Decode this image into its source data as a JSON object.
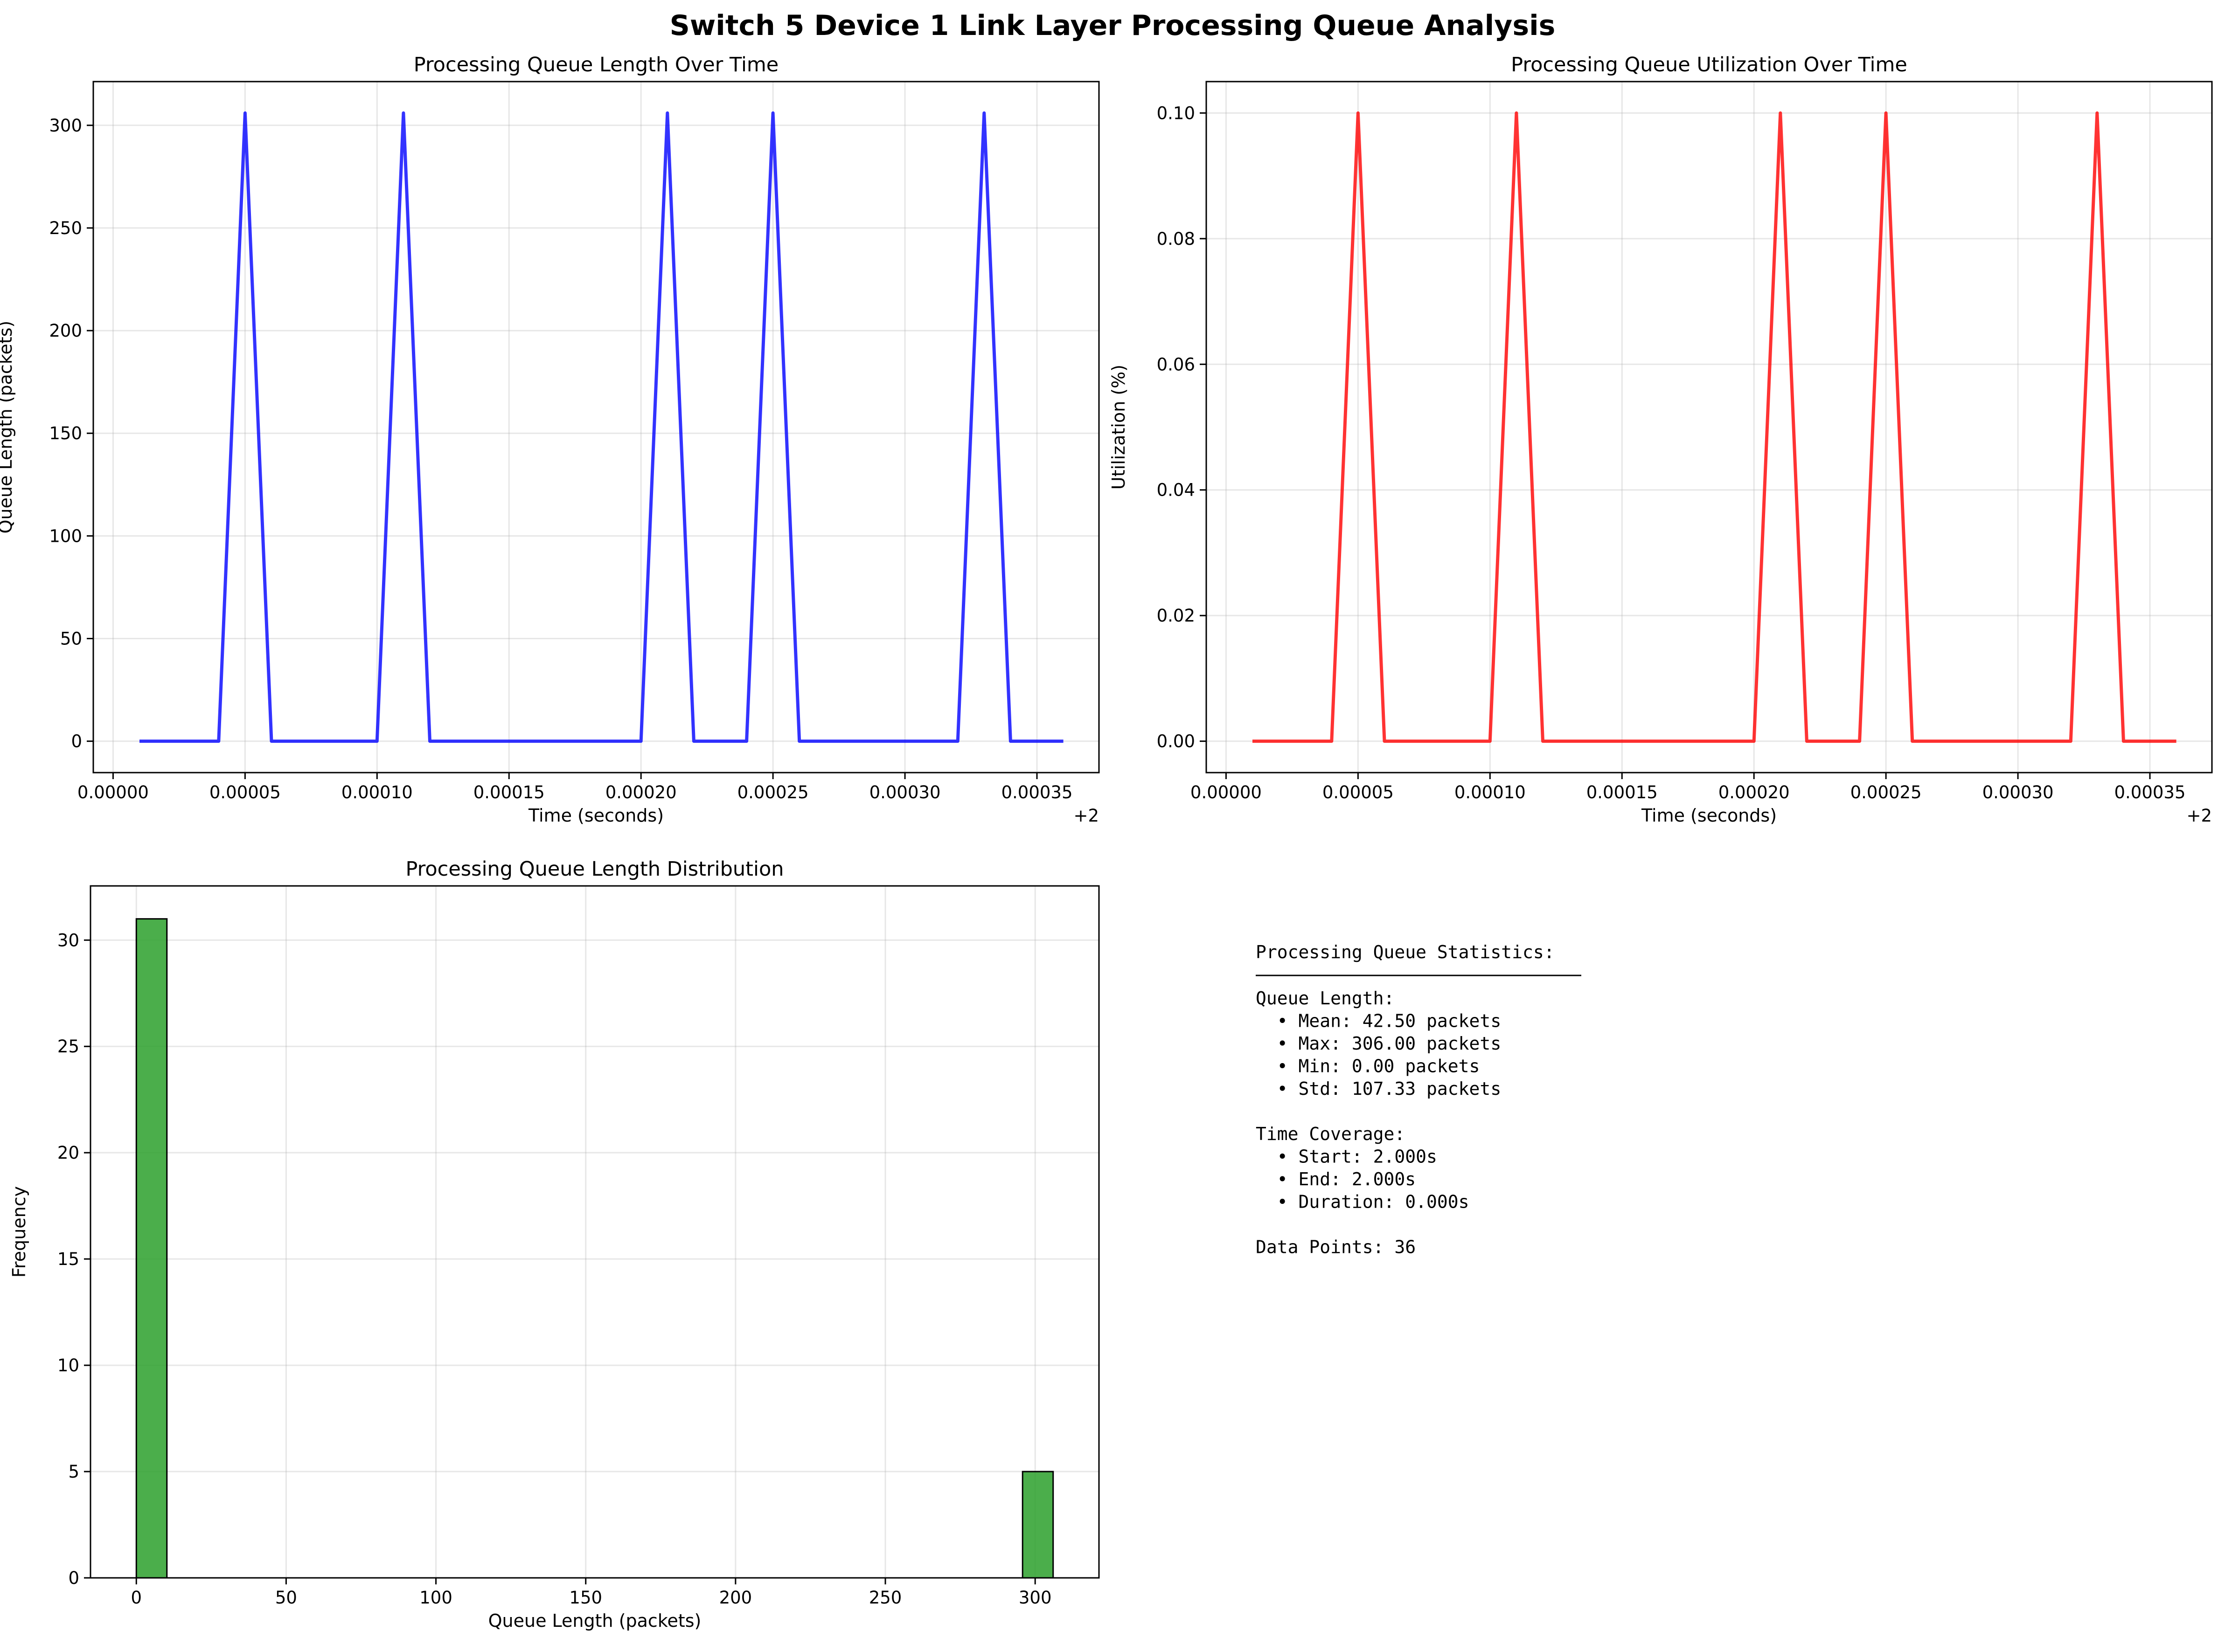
{
  "title": "Switch 5 Device 1 Link Layer Processing Queue Analysis",
  "chart_data": [
    {
      "type": "line",
      "title": "Processing Queue Length Over Time",
      "xlabel": "Time (seconds)",
      "ylabel": "Queue Length (packets)",
      "x_offset_label": "+2",
      "x_ticks": [
        "0.00000",
        "0.00005",
        "0.00010",
        "0.00015",
        "0.00020",
        "0.00025",
        "0.00030",
        "0.00035"
      ],
      "y_ticks": [
        "0",
        "50",
        "100",
        "150",
        "200",
        "250",
        "300"
      ],
      "xlim": [
        -7.5e-06,
        0.0003735
      ],
      "ylim": [
        -15.3,
        321.3
      ],
      "grid": true,
      "color": "#0000ff",
      "series": [
        {
          "x": [
            1e-05,
            2e-05,
            3e-05,
            4e-05,
            5e-05,
            6e-05,
            7e-05,
            8e-05,
            9e-05,
            0.0001,
            0.00011,
            0.00012,
            0.00013,
            0.00014,
            0.00015,
            0.00016,
            0.00017,
            0.00018,
            0.00019,
            0.0002,
            0.00021,
            0.00022,
            0.00023,
            0.00024,
            0.00025,
            0.00026,
            0.00027,
            0.00028,
            0.00029,
            0.0003,
            0.00031,
            0.00032,
            0.00033,
            0.00034,
            0.00035,
            0.00036
          ],
          "values": [
            0,
            0,
            0,
            0,
            306,
            0,
            0,
            0,
            0,
            0,
            306,
            0,
            0,
            0,
            0,
            0,
            0,
            0,
            0,
            0,
            306,
            0,
            0,
            0,
            306,
            0,
            0,
            0,
            0,
            0,
            0,
            0,
            306,
            0,
            0,
            0
          ]
        }
      ]
    },
    {
      "type": "line",
      "title": "Processing Queue Utilization Over Time",
      "xlabel": "Time (seconds)",
      "ylabel": "Utilization (%)",
      "x_offset_label": "+2",
      "x_ticks": [
        "0.00000",
        "0.00005",
        "0.00010",
        "0.00015",
        "0.00020",
        "0.00025",
        "0.00030",
        "0.00035"
      ],
      "y_ticks": [
        "0.00",
        "0.02",
        "0.04",
        "0.06",
        "0.08",
        "0.10"
      ],
      "xlim": [
        -7.5e-06,
        0.0003735
      ],
      "ylim": [
        -0.005,
        0.105
      ],
      "grid": true,
      "color": "#ff0000",
      "series": [
        {
          "x": [
            1e-05,
            2e-05,
            3e-05,
            4e-05,
            5e-05,
            6e-05,
            7e-05,
            8e-05,
            9e-05,
            0.0001,
            0.00011,
            0.00012,
            0.00013,
            0.00014,
            0.00015,
            0.00016,
            0.00017,
            0.00018,
            0.00019,
            0.0002,
            0.00021,
            0.00022,
            0.00023,
            0.00024,
            0.00025,
            0.00026,
            0.00027,
            0.00028,
            0.00029,
            0.0003,
            0.00031,
            0.00032,
            0.00033,
            0.00034,
            0.00035,
            0.00036
          ],
          "values": [
            0,
            0,
            0,
            0,
            0.1,
            0,
            0,
            0,
            0,
            0,
            0.1,
            0,
            0,
            0,
            0,
            0,
            0,
            0,
            0,
            0,
            0.1,
            0,
            0,
            0,
            0.1,
            0,
            0,
            0,
            0,
            0,
            0,
            0,
            0.1,
            0,
            0,
            0
          ]
        }
      ]
    },
    {
      "type": "bar",
      "title": "Processing Queue Length Distribution",
      "xlabel": "Queue Length (packets)",
      "ylabel": "Frequency",
      "x_ticks": [
        "0",
        "50",
        "100",
        "150",
        "200",
        "250",
        "300"
      ],
      "y_ticks": [
        "0",
        "5",
        "10",
        "15",
        "20",
        "25",
        "30"
      ],
      "xlim": [
        -15.3,
        321.3
      ],
      "ylim": [
        0,
        32.55
      ],
      "grid": true,
      "color": "#2ca02c",
      "bins": [
        {
          "start": 0,
          "end": 10.2,
          "count": 31
        },
        {
          "start": 295.8,
          "end": 306,
          "count": 5
        }
      ]
    }
  ],
  "stats": {
    "heading": "Processing Queue Statistics:",
    "lines": [
      "Queue Length:",
      "  • Mean: 42.50 packets",
      "  • Max: 306.00 packets",
      "  • Min: 0.00 packets",
      "  • Std: 107.33 packets",
      "",
      "Time Coverage:",
      "  • Start: 2.000s",
      "  • End: 2.000s",
      "  • Duration: 0.000s",
      "",
      "Data Points: 36"
    ]
  }
}
